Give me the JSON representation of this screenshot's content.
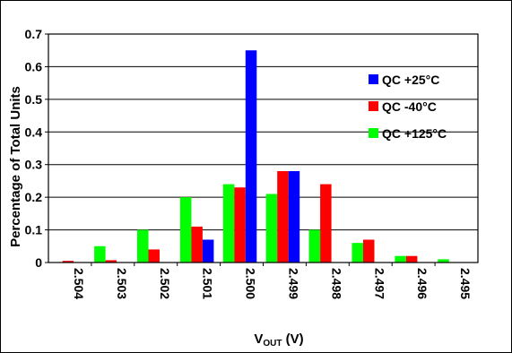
{
  "chart_data": {
    "type": "bar",
    "categories": [
      "2.504",
      "2.503",
      "2.502",
      "2.501",
      "2.500",
      "2.499",
      "2.498",
      "2.497",
      "2.496",
      "2.495"
    ],
    "series": [
      {
        "name": "QC +25°C",
        "color": "#0000FF",
        "values": [
          0,
          0,
          0,
          0.07,
          0.65,
          0.28,
          0,
          0,
          0,
          0
        ]
      },
      {
        "name": "QC -40°C",
        "color": "#FF0000",
        "values": [
          0.005,
          0.007,
          0.04,
          0.11,
          0.23,
          0.28,
          0.24,
          0.07,
          0.02,
          0
        ]
      },
      {
        "name": "QC +125°C",
        "color": "#00FF00",
        "values": [
          0,
          0.05,
          0.1,
          0.2,
          0.24,
          0.21,
          0.1,
          0.06,
          0.02,
          0.01
        ]
      }
    ],
    "draw_order": [
      "QC +125°C",
      "QC -40°C",
      "QC +25°C"
    ],
    "ylabel": "Percentage of Total Units",
    "xlabel": {
      "main": "V",
      "subscript": "OUT",
      "suffix": " (V)"
    },
    "yticks": [
      "0",
      "0.1",
      "0.2",
      "0.3",
      "0.4",
      "0.5",
      "0.6",
      "0.7"
    ],
    "ytick_values": [
      0,
      0.1,
      0.2,
      0.3,
      0.4,
      0.5,
      0.6,
      0.7
    ],
    "ylim": [
      0,
      0.7
    ],
    "grid": true,
    "legend_position": "right"
  }
}
